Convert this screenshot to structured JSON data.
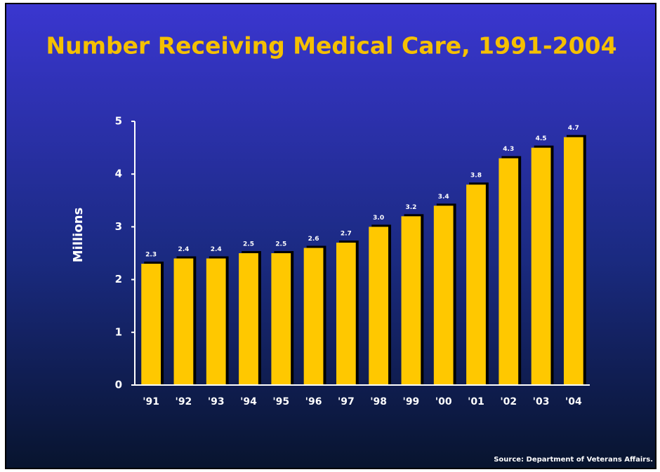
{
  "chart_data": {
    "type": "bar",
    "title": "Number Receiving Medical Care, 1991-2004",
    "y_label": "Millions",
    "source": "Source: Department of Veterans Affairs.",
    "categories": [
      "'91",
      "'92",
      "'93",
      "'94",
      "'95",
      "'96",
      "'97",
      "'98",
      "'99",
      "'00",
      "'01",
      "'02",
      "'03",
      "'04"
    ],
    "values": [
      2.3,
      2.4,
      2.4,
      2.5,
      2.5,
      2.6,
      2.7,
      3.0,
      3.2,
      3.4,
      3.8,
      4.3,
      4.5,
      4.7
    ],
    "value_labels": [
      "2.3",
      "2.4",
      "2.4",
      "2.5",
      "2.5",
      "2.6",
      "2.7",
      "3.0",
      "3.2",
      "3.4",
      "3.8",
      "4.3",
      "4.5",
      "4.7"
    ],
    "color": "#ffc800",
    "ylim": [
      0,
      5
    ],
    "yticks": [
      0,
      1,
      2,
      3,
      4,
      5
    ],
    "grid": false
  }
}
